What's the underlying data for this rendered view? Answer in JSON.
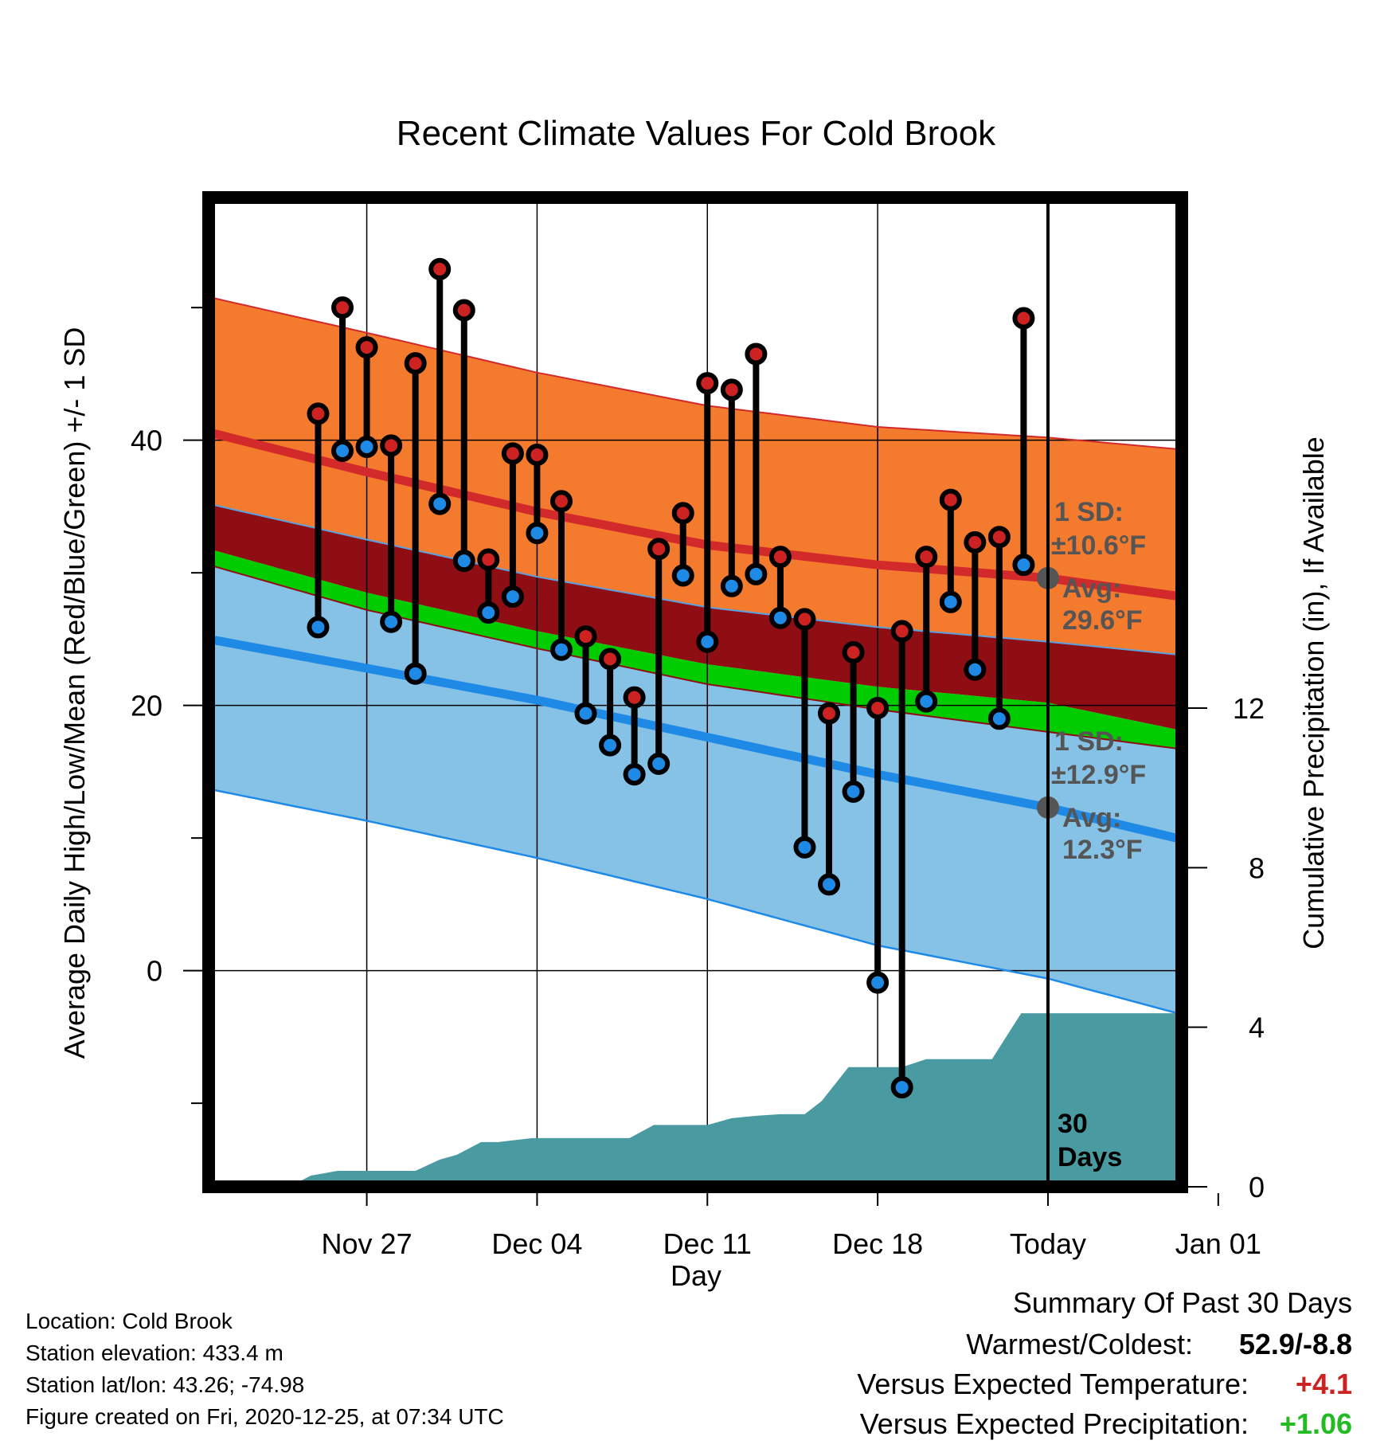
{
  "chart_data": {
    "type": "line",
    "title": "Recent Climate Values For Cold Brook",
    "xlabel": "Day",
    "ylabel": "Average Daily High/Low/Mean (Red/Blue/Green) +/- 1 SD",
    "y2label": "Cumulative Precipitation (in), If Available",
    "xlim_day_offset": [
      -34.5,
      5.5
    ],
    "ylim": [
      -16.3,
      58.3
    ],
    "y2lim": [
      0,
      24.8
    ],
    "x_ticks": [
      {
        "day": -28,
        "label": "Nov 27"
      },
      {
        "day": -21,
        "label": "Dec 04"
      },
      {
        "day": -14,
        "label": "Dec 11"
      },
      {
        "day": -7,
        "label": "Dec 18"
      },
      {
        "day": 0,
        "label": "Today"
      },
      {
        "day": 7,
        "label": "Jan 01"
      }
    ],
    "y_ticks": [
      0,
      20,
      40
    ],
    "y_minor_ticks": [
      -10,
      10,
      30,
      50
    ],
    "y2_ticks": [
      0,
      4,
      8,
      12
    ],
    "grid": true,
    "today_line_label": [
      "30",
      "Days"
    ],
    "normals": {
      "day": [
        -34.5,
        -28,
        -21,
        -14,
        -7,
        0,
        5.5
      ],
      "high_mean": [
        40.6,
        37.6,
        34.6,
        32.1,
        30.6,
        29.6,
        28.2
      ],
      "high_upper": [
        50.8,
        48.1,
        45.1,
        42.6,
        41.0,
        40.2,
        39.3
      ],
      "high_lower": [
        35.2,
        32.5,
        29.7,
        27.4,
        25.9,
        24.8,
        23.8
      ],
      "mean_upper": [
        31.8,
        28.5,
        25.6,
        23.1,
        21.4,
        20.2,
        18.1
      ],
      "mean_lower": [
        30.6,
        27.2,
        24.3,
        21.6,
        19.7,
        18.0,
        16.7
      ],
      "low_mean": [
        25.0,
        22.8,
        20.4,
        17.6,
        14.8,
        12.3,
        9.9
      ],
      "low_upper": [
        30.6,
        27.2,
        24.3,
        21.6,
        19.7,
        18.0,
        16.7
      ],
      "low_lower": [
        13.7,
        11.3,
        8.5,
        5.4,
        1.9,
        -0.6,
        -3.3
      ]
    },
    "sd_annotations": [
      {
        "line1": "1 SD:",
        "line2": "±10.6°F",
        "line3": "Avg:",
        "line4": "29.6°F",
        "value": 29.6
      },
      {
        "line1": "1 SD:",
        "line2": "±12.9°F",
        "line3": "Avg:",
        "line4": "12.3°F",
        "value": 12.3
      }
    ],
    "series": [
      {
        "name": "High",
        "days": [
          -30,
          -29,
          -28,
          -27,
          -26,
          -25,
          -24,
          -23,
          -22,
          -21,
          -20,
          -19,
          -18,
          -17,
          -16,
          -15,
          -14,
          -13,
          -12,
          -11,
          -10,
          -9,
          -8,
          -7,
          -6,
          -5,
          -4,
          -3,
          -2,
          -1
        ],
        "values": [
          42.0,
          50.0,
          47.0,
          39.6,
          45.8,
          52.9,
          49.8,
          31.0,
          39.0,
          38.9,
          35.4,
          25.2,
          23.5,
          20.6,
          31.8,
          34.5,
          44.3,
          43.8,
          46.5,
          31.2,
          26.5,
          19.4,
          24.0,
          19.8,
          25.6,
          31.2,
          35.5,
          32.3,
          32.7,
          49.2
        ]
      },
      {
        "name": "Low",
        "days": [
          -30,
          -29,
          -28,
          -27,
          -26,
          -25,
          -24,
          -23,
          -22,
          -21,
          -20,
          -19,
          -18,
          -17,
          -16,
          -15,
          -14,
          -13,
          -12,
          -11,
          -10,
          -9,
          -8,
          -7,
          -6,
          -5,
          -4,
          -3,
          -2,
          -1
        ],
        "values": [
          25.9,
          39.2,
          39.5,
          26.3,
          22.4,
          35.2,
          30.9,
          27.0,
          28.2,
          33.0,
          24.2,
          19.4,
          17.0,
          14.8,
          15.6,
          29.8,
          24.8,
          29.0,
          29.9,
          26.6,
          9.3,
          6.5,
          13.5,
          -0.9,
          -8.8,
          20.3,
          27.8,
          22.7,
          19.0,
          30.6
        ]
      }
    ],
    "precipitation": {
      "name": "Cumulative Precipitation",
      "days": [
        -31.2,
        -30.3,
        -29.2,
        -27,
        -26,
        -25,
        -24.3,
        -23.3,
        -22.6,
        -21.2,
        -17.2,
        -16.2,
        -14,
        -13,
        -12,
        -11,
        -10,
        -9.3,
        -8.2,
        -7,
        -6,
        -5,
        -4,
        -3,
        -2.3,
        -1.1,
        -0.3,
        5.5
      ],
      "values": [
        0,
        0.28,
        0.4,
        0.4,
        0.4,
        0.68,
        0.8,
        1.12,
        1.12,
        1.22,
        1.22,
        1.55,
        1.55,
        1.72,
        1.78,
        1.82,
        1.82,
        2.15,
        3.0,
        3.0,
        3.0,
        3.2,
        3.2,
        3.2,
        3.2,
        4.35,
        4.35,
        4.35
      ]
    }
  },
  "footer": {
    "location": "Location: Cold Brook",
    "elevation": "Station elevation: 433.4 m",
    "latlon": "Station lat/lon: 43.26; -74.98",
    "created": "Figure created on Fri, 2020-12-25, at 07:34 UTC"
  },
  "summary": {
    "heading": "Summary Of Past 30 Days",
    "warmest_coldest_label": "Warmest/Coldest:",
    "warmest_coldest_value": "52.9/-8.8",
    "temp_label": "Versus Expected Temperature:",
    "temp_value": "+4.1",
    "precip_label": "Versus Expected Precipitation:",
    "precip_value": "+1.06"
  },
  "colors": {
    "high_band": "#f47a2e",
    "high_line": "#d22a2a",
    "mean_band": "#8e0e14",
    "green_band": "#00cc00",
    "low_band": "#86c1e6",
    "low_line": "#1e8ae6",
    "precip_fill": "#4a9aa2",
    "high_dot": "#cc2222",
    "low_dot": "#1e8ae6"
  }
}
